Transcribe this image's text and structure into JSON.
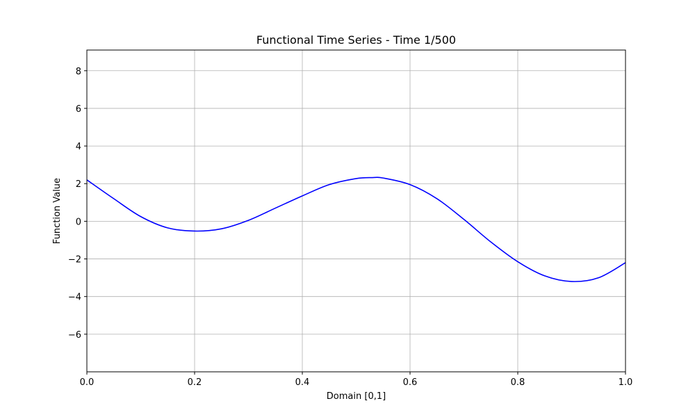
{
  "chart_data": {
    "type": "line",
    "title": "Functional Time Series - Time 1/500",
    "xlabel": "Domain [0,1]",
    "ylabel": "Function Value",
    "xlim": [
      0,
      1
    ],
    "ylim": [
      -8,
      9.1
    ],
    "xticks": [
      0.0,
      0.2,
      0.4,
      0.6,
      0.8,
      1.0
    ],
    "xtick_labels": [
      "0.0",
      "0.2",
      "0.4",
      "0.6",
      "0.8",
      "1.0"
    ],
    "yticks": [
      -6,
      -4,
      -2,
      0,
      2,
      4,
      6,
      8
    ],
    "ytick_labels": [
      "−6",
      "−4",
      "−2",
      "0",
      "2",
      "4",
      "6",
      "8"
    ],
    "grid": true,
    "series": [
      {
        "color": "#0000ff",
        "x": [
          0.0,
          0.05,
          0.1,
          0.15,
          0.2,
          0.25,
          0.3,
          0.35,
          0.4,
          0.45,
          0.5,
          0.53,
          0.55,
          0.6,
          0.65,
          0.7,
          0.75,
          0.8,
          0.85,
          0.9,
          0.95,
          1.0
        ],
        "y": [
          2.2,
          1.2,
          0.25,
          -0.35,
          -0.52,
          -0.4,
          0.05,
          0.7,
          1.35,
          1.95,
          2.27,
          2.32,
          2.3,
          1.95,
          1.2,
          0.1,
          -1.1,
          -2.15,
          -2.9,
          -3.2,
          -3.0,
          -2.2
        ]
      }
    ]
  }
}
